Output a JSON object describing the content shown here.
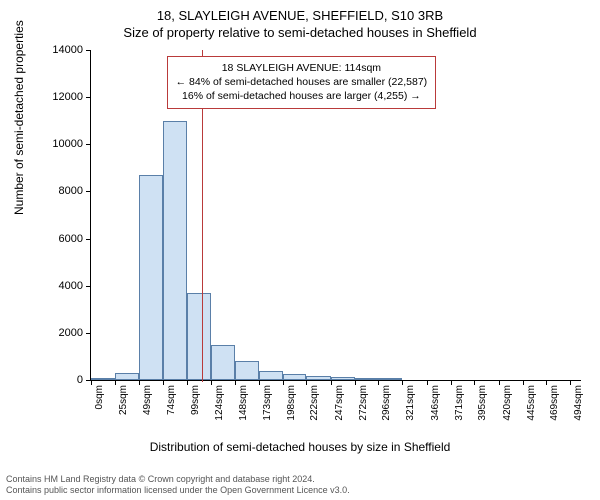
{
  "title_line1": "18, SLAYLEIGH AVENUE, SHEFFIELD, S10 3RB",
  "title_line2": "Size of property relative to semi-detached houses in Sheffield",
  "y_axis_title": "Number of semi-detached properties",
  "x_axis_title": "Distribution of semi-detached houses by size in Sheffield",
  "footer_line1": "Contains HM Land Registry data © Crown copyright and database right 2024.",
  "footer_line2": "Contains public sector information licensed under the Open Government Licence v3.0.",
  "chart": {
    "type": "histogram",
    "ylim": [
      0,
      14000
    ],
    "yticks": [
      0,
      2000,
      4000,
      6000,
      8000,
      10000,
      12000,
      14000
    ],
    "xlim_sqm": [
      0,
      505
    ],
    "xticks_sqm": [
      0,
      25,
      49,
      74,
      99,
      124,
      148,
      173,
      198,
      222,
      247,
      272,
      296,
      321,
      346,
      371,
      395,
      420,
      445,
      469,
      494
    ],
    "xtick_suffix": "sqm",
    "bar_color": "#cfe1f3",
    "bar_border": "#5a7fa8",
    "grid_color": "#ffffff",
    "bar_border_width": 1,
    "bins": [
      {
        "start": 0,
        "end": 25,
        "count": 30
      },
      {
        "start": 25,
        "end": 49,
        "count": 300
      },
      {
        "start": 49,
        "end": 74,
        "count": 8700
      },
      {
        "start": 74,
        "end": 99,
        "count": 11000
      },
      {
        "start": 99,
        "end": 124,
        "count": 3700
      },
      {
        "start": 124,
        "end": 148,
        "count": 1500
      },
      {
        "start": 148,
        "end": 173,
        "count": 800
      },
      {
        "start": 173,
        "end": 198,
        "count": 400
      },
      {
        "start": 198,
        "end": 222,
        "count": 250
      },
      {
        "start": 222,
        "end": 247,
        "count": 150
      },
      {
        "start": 247,
        "end": 272,
        "count": 120
      },
      {
        "start": 272,
        "end": 296,
        "count": 100
      },
      {
        "start": 296,
        "end": 321,
        "count": 50
      }
    ],
    "marker": {
      "value_sqm": 114,
      "color": "#b93a3a"
    },
    "annotation": {
      "line1": "18 SLAYLEIGH AVENUE: 114sqm",
      "line2": "← 84% of semi-detached houses are smaller (22,587)",
      "line3": "16% of semi-detached houses are larger (4,255) →",
      "border_color": "#b93a3a",
      "font_size": 10.5
    }
  }
}
